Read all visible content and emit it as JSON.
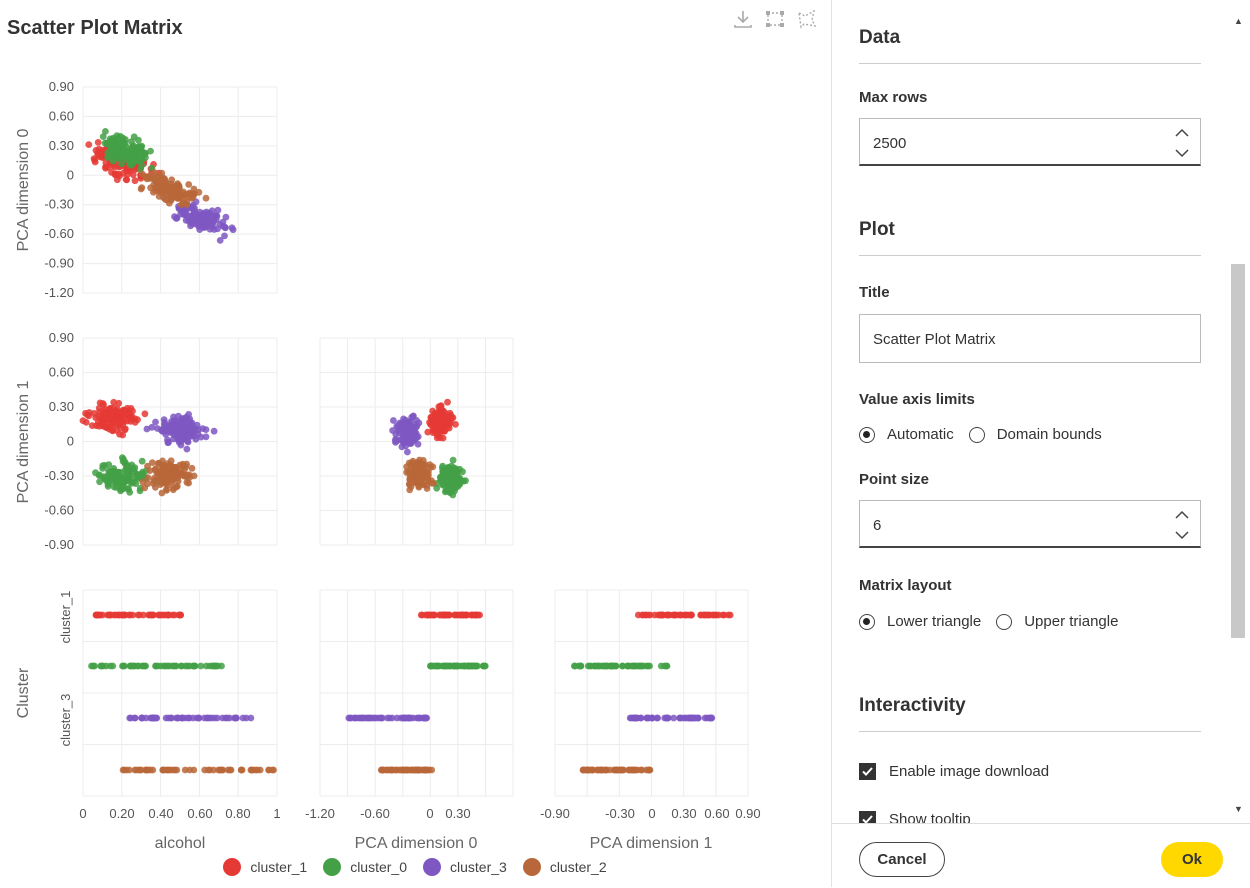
{
  "plot": {
    "title": "Scatter Plot Matrix",
    "toolbar": [
      {
        "icon": "download-icon"
      },
      {
        "icon": "rectangle-select-icon"
      },
      {
        "icon": "lasso-select-icon"
      }
    ]
  },
  "chart_data": {
    "type": "scatter",
    "title": "Scatter Plot Matrix",
    "layout": "lower-triangle",
    "variables": [
      "alcohol",
      "PCA dimension 0",
      "PCA dimension 1",
      "Cluster"
    ],
    "axes": {
      "alcohol": {
        "ticks": [
          "0",
          "0.20",
          "0.40",
          "0.60",
          "0.80",
          "1"
        ],
        "range": [
          0,
          1
        ]
      },
      "pca_dimension_0": {
        "ticks": [
          "0.90",
          "0.60",
          "0.30",
          "0",
          "-0.30",
          "-0.60",
          "-0.90",
          "-1.20"
        ],
        "x_ticks": [
          "-1.20",
          "-0.60",
          "0",
          "0.30"
        ],
        "range": [
          -1.2,
          0.9
        ]
      },
      "pca_dimension_1": {
        "ticks": [
          "0.90",
          "0.60",
          "0.30",
          "0",
          "-0.30",
          "-0.60",
          "-0.90"
        ],
        "x_ticks": [
          "-0.90",
          "-0.30",
          "0",
          "0.30",
          "0.60",
          "0.90"
        ],
        "range": [
          -0.9,
          0.9
        ]
      },
      "cluster": {
        "ticks": [
          "cluster_1",
          "cluster_3"
        ],
        "categories": [
          "cluster_1",
          "cluster_0",
          "cluster_3",
          "cluster_2"
        ]
      }
    },
    "series": [
      {
        "name": "cluster_1",
        "color": "#e53935",
        "alcohol": [
          0.06,
          0.52
        ],
        "pca_dimension_0": [
          -0.1,
          0.55
        ],
        "pca_dimension_1": [
          -0.15,
          0.74
        ],
        "pca0_center": [
          0.2,
          0.12
        ],
        "pca1_center": [
          0.15,
          0.2
        ],
        "pca01_center": [
          0.12,
          0.17
        ]
      },
      {
        "name": "cluster_0",
        "color": "#43a047",
        "alcohol": [
          0.0,
          0.72
        ],
        "pca_dimension_0": [
          0.0,
          0.6
        ],
        "pca_dimension_1": [
          -0.73,
          0.15
        ],
        "pca0_center": [
          0.22,
          0.25
        ],
        "pca1_center": [
          0.2,
          -0.3
        ],
        "pca01_center": [
          0.22,
          -0.32
        ]
      },
      {
        "name": "cluster_3",
        "color": "#7e57c2",
        "alcohol": [
          0.24,
          0.87
        ],
        "pca_dimension_0": [
          -0.92,
          0.0
        ],
        "pca_dimension_1": [
          -0.2,
          0.6
        ],
        "pca0_center": [
          0.62,
          -0.45
        ],
        "pca1_center": [
          0.5,
          0.1
        ],
        "pca01_center": [
          -0.25,
          0.08
        ]
      },
      {
        "name": "cluster_2",
        "color": "#b8673a",
        "alcohol": [
          0.17,
          1.0
        ],
        "pca_dimension_0": [
          -0.55,
          0.02
        ],
        "pca_dimension_1": [
          -0.65,
          0.0
        ],
        "pca0_center": [
          0.45,
          -0.15
        ],
        "pca1_center": [
          0.45,
          -0.28
        ],
        "pca01_center": [
          -0.12,
          -0.28
        ]
      }
    ],
    "legend": {
      "position": "bottom",
      "entries": [
        "cluster_1",
        "cluster_0",
        "cluster_3",
        "cluster_2"
      ]
    },
    "grid": true
  },
  "panel": {
    "data_section": {
      "title": "Data",
      "max_rows_label": "Max rows",
      "max_rows_value": "2500"
    },
    "plot_section": {
      "title": "Plot",
      "title_label": "Title",
      "title_value": "Scatter Plot Matrix",
      "value_axis_label": "Value axis limits",
      "value_axis_options": [
        "Automatic",
        "Domain bounds"
      ],
      "value_axis_selected": "Automatic",
      "point_size_label": "Point size",
      "point_size_value": "6",
      "matrix_layout_label": "Matrix layout",
      "matrix_layout_options": [
        "Lower triangle",
        "Upper triangle"
      ],
      "matrix_layout_selected": "Lower triangle"
    },
    "interactivity_section": {
      "title": "Interactivity",
      "enable_download_label": "Enable image download",
      "show_tooltip_label": "Show tooltip"
    },
    "footer": {
      "cancel_label": "Cancel",
      "ok_label": "Ok",
      "ok_color": "#ffd800"
    }
  }
}
